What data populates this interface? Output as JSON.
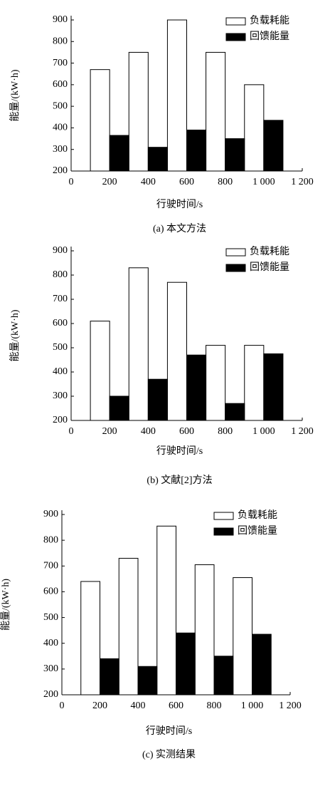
{
  "chart_data": [
    {
      "type": "bar",
      "caption": "(a) 本文方法",
      "xlabel": "行驶时间/s",
      "ylabel": "能量/(kW·h)",
      "xlim": [
        0,
        1200
      ],
      "xticks": [
        0,
        200,
        400,
        600,
        800,
        {
          "value": 1000,
          "label": "1 000"
        },
        {
          "value": 1200,
          "label": "1 200"
        }
      ],
      "ylim": [
        200,
        900
      ],
      "yticks": [
        200,
        300,
        400,
        500,
        600,
        700,
        800,
        900
      ],
      "legend": "upper right",
      "series": [
        {
          "name": "负载耗能",
          "color": "#ffffff",
          "x": [
            150,
            350,
            550,
            750,
            950
          ],
          "values": [
            670,
            750,
            900,
            750,
            600
          ]
        },
        {
          "name": "回馈能量",
          "color": "#000000",
          "x": [
            250,
            450,
            650,
            850,
            1050
          ],
          "values": [
            365,
            310,
            390,
            350,
            435
          ]
        }
      ]
    },
    {
      "type": "bar",
      "caption": "(b) 文献[2]方法",
      "xlabel": "行驶时间/s",
      "ylabel": "能量/(kW·h)",
      "xlim": [
        0,
        1200
      ],
      "xticks": [
        0,
        200,
        400,
        600,
        800,
        {
          "value": 1000,
          "label": "1 000"
        },
        {
          "value": 1200,
          "label": "1 200"
        }
      ],
      "ylim": [
        200,
        900
      ],
      "yticks": [
        200,
        300,
        400,
        500,
        600,
        700,
        800,
        900
      ],
      "legend": "upper right",
      "series": [
        {
          "name": "负载耗能",
          "color": "#ffffff",
          "x": [
            150,
            350,
            550,
            750,
            950
          ],
          "values": [
            610,
            830,
            770,
            510,
            510
          ]
        },
        {
          "name": "回馈能量",
          "color": "#000000",
          "x": [
            250,
            450,
            650,
            850,
            1050
          ],
          "values": [
            300,
            370,
            470,
            270,
            475
          ]
        }
      ]
    },
    {
      "type": "bar",
      "caption": "(c) 实测结果",
      "xlabel": "行驶时间/s",
      "ylabel": "能量/(kW·h)",
      "xlim": [
        0,
        1200
      ],
      "xticks": [
        0,
        200,
        400,
        600,
        800,
        {
          "value": 1000,
          "label": "1 000"
        },
        {
          "value": 1200,
          "label": "1 200"
        }
      ],
      "ylim": [
        200,
        900
      ],
      "yticks": [
        200,
        300,
        400,
        500,
        600,
        700,
        800,
        900
      ],
      "legend": "upper right",
      "series": [
        {
          "name": "负载耗能",
          "color": "#ffffff",
          "x": [
            150,
            350,
            550,
            750,
            950
          ],
          "values": [
            640,
            730,
            855,
            705,
            655
          ]
        },
        {
          "name": "回馈能量",
          "color": "#000000",
          "x": [
            250,
            450,
            650,
            850,
            1050
          ],
          "values": [
            340,
            310,
            440,
            350,
            435
          ]
        }
      ]
    }
  ]
}
